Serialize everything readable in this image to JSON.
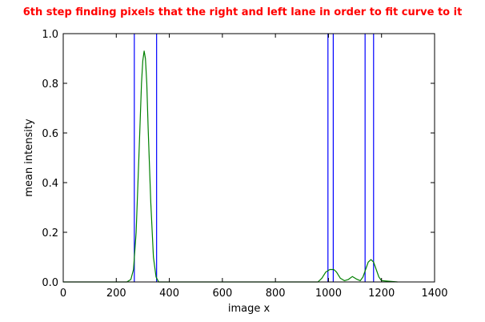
{
  "chart_data": {
    "type": "line",
    "title": "6th step finding pixels that the right and left lane in order to fit curve to it",
    "xlabel": "image x",
    "ylabel": "mean intensity",
    "xlim": [
      0,
      1400
    ],
    "ylim": [
      0.0,
      1.0
    ],
    "xticks": [
      0,
      200,
      400,
      600,
      800,
      1000,
      1200,
      1400
    ],
    "yticks": [
      0.0,
      0.2,
      0.4,
      0.6,
      0.8,
      1.0
    ],
    "grid": false,
    "series": [
      {
        "color": "#008000",
        "x": [
          0,
          240,
          255,
          265,
          275,
          285,
          295,
          300,
          305,
          310,
          315,
          320,
          330,
          340,
          350,
          360,
          400,
          600,
          800,
          960,
          975,
          990,
          1005,
          1020,
          1030,
          1045,
          1060,
          1075,
          1090,
          1105,
          1120,
          1130,
          1140,
          1150,
          1160,
          1170,
          1180,
          1190,
          1200,
          1260
        ],
        "y": [
          0.0,
          0.0,
          0.01,
          0.05,
          0.2,
          0.5,
          0.8,
          0.89,
          0.93,
          0.9,
          0.8,
          0.62,
          0.32,
          0.1,
          0.02,
          0.0,
          0.0,
          0.0,
          0.0,
          0.0,
          0.015,
          0.04,
          0.05,
          0.05,
          0.04,
          0.015,
          0.005,
          0.01,
          0.022,
          0.012,
          0.005,
          0.02,
          0.05,
          0.08,
          0.09,
          0.08,
          0.05,
          0.02,
          0.005,
          0.0
        ]
      }
    ],
    "vlines": {
      "color": "#0000ff",
      "x": [
        268,
        352,
        998,
        1018,
        1138,
        1170
      ]
    }
  }
}
